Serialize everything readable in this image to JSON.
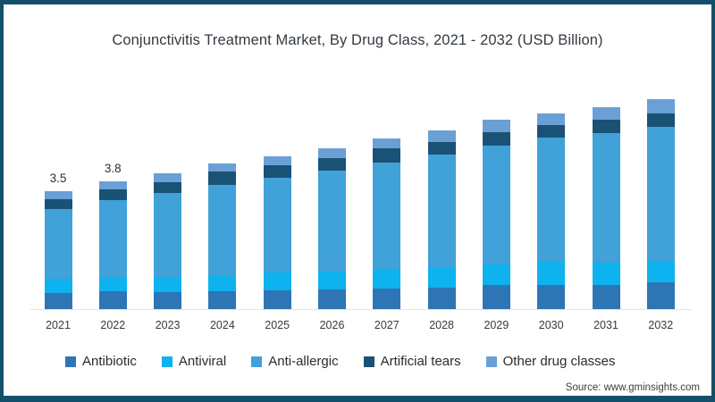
{
  "title": "Conjunctivitis Treatment Market, By Drug Class, 2021 - 2032 (USD Billion)",
  "source": {
    "text": "Source: www.gminsights.com"
  },
  "frame": {
    "border_color": "#14506a",
    "background": "#ffffff"
  },
  "legend": {
    "position": "bottom",
    "items": [
      {
        "label": "Antibiotic",
        "color": "#2e75b6"
      },
      {
        "label": "Antiviral",
        "color": "#0db2ee"
      },
      {
        "label": "Anti-allergic",
        "color": "#41a1d9"
      },
      {
        "label": "Artificial tears",
        "color": "#1a5276"
      },
      {
        "label": "Other drug classes",
        "color": "#6aa0d6"
      }
    ]
  },
  "chart_data": {
    "type": "bar",
    "stacked": true,
    "title": "Conjunctivitis Treatment Market, By Drug Class, 2021 - 2032 (USD Billion)",
    "xlabel": "",
    "ylabel": "USD Billion",
    "ylim": [
      0,
      6.6
    ],
    "grid": false,
    "legend_position": "bottom",
    "categories": [
      "2021",
      "2022",
      "2023",
      "2024",
      "2025",
      "2026",
      "2027",
      "2028",
      "2029",
      "2030",
      "2031",
      "2032"
    ],
    "series": [
      {
        "name": "Antibiotic",
        "color": "#2e75b6",
        "values": [
          0.47,
          0.53,
          0.5,
          0.53,
          0.56,
          0.58,
          0.61,
          0.64,
          0.71,
          0.73,
          0.73,
          0.8
        ]
      },
      {
        "name": "Antiviral",
        "color": "#0db2ee",
        "values": [
          0.43,
          0.43,
          0.44,
          0.46,
          0.53,
          0.55,
          0.58,
          0.59,
          0.62,
          0.69,
          0.66,
          0.64
        ]
      },
      {
        "name": "Anti-allergic",
        "color": "#41a1d9",
        "values": [
          2.09,
          2.28,
          2.52,
          2.72,
          2.81,
          2.99,
          3.17,
          3.37,
          3.54,
          3.68,
          3.85,
          3.99
        ]
      },
      {
        "name": "Artificial tears",
        "color": "#1a5276",
        "values": [
          0.27,
          0.33,
          0.33,
          0.38,
          0.38,
          0.37,
          0.44,
          0.38,
          0.4,
          0.38,
          0.4,
          0.4
        ]
      },
      {
        "name": "Other drug classes",
        "color": "#6aa0d6",
        "values": [
          0.24,
          0.23,
          0.25,
          0.24,
          0.27,
          0.29,
          0.29,
          0.35,
          0.38,
          0.35,
          0.38,
          0.42
        ]
      }
    ],
    "totals": [
      3.5,
      3.8,
      4.04,
      4.33,
      4.55,
      4.78,
      5.09,
      5.33,
      5.65,
      5.83,
      6.02,
      6.25
    ],
    "data_labels": [
      {
        "category": "2021",
        "text": "3.5"
      },
      {
        "category": "2022",
        "text": "3.8"
      }
    ]
  }
}
